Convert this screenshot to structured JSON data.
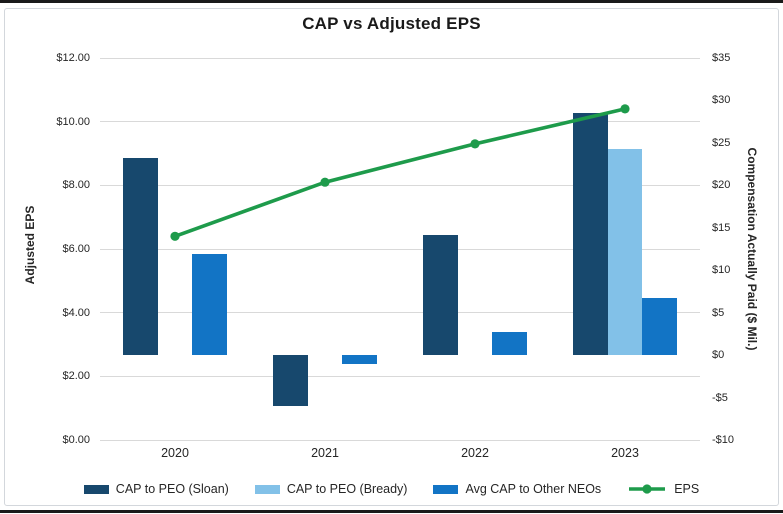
{
  "figure": {
    "title": "CAP vs Adjusted EPS"
  },
  "chart_data": {
    "type": "combo-bar-line",
    "title": "CAP vs Adjusted EPS",
    "categories": [
      "2020",
      "2021",
      "2022",
      "2023"
    ],
    "bar_series": [
      {
        "name": "CAP to PEO (Sloan)",
        "color": "#17486d",
        "axis": "right",
        "values": [
          23.2,
          -6.0,
          14.1,
          28.5
        ]
      },
      {
        "name": "CAP to PEO (Bready)",
        "color": "#82c1e8",
        "axis": "right",
        "values": [
          null,
          null,
          null,
          24.3
        ]
      },
      {
        "name": "Avg CAP to Other NEOs",
        "color": "#1274c5",
        "axis": "right",
        "values": [
          11.9,
          -1.1,
          2.7,
          6.7
        ]
      }
    ],
    "line_series": [
      {
        "name": "EPS",
        "color": "#1e9b4b",
        "axis": "left",
        "values": [
          6.4,
          8.1,
          9.3,
          10.4
        ]
      }
    ],
    "left_axis": {
      "label": "Adjusted EPS",
      "min": 0,
      "max": 12,
      "tick_step": 2,
      "ticks": [
        "$0.00",
        "$2.00",
        "$4.00",
        "$6.00",
        "$8.00",
        "$10.00",
        "$12.00"
      ]
    },
    "right_axis": {
      "label": "Compensation Actually Paid ($ Mil.)",
      "min": -10,
      "max": 35,
      "tick_step": 5,
      "ticks": [
        "-$10",
        "-$5",
        "$0",
        "$5",
        "$10",
        "$15",
        "$20",
        "$25",
        "$30",
        "$35"
      ]
    },
    "grid": true,
    "legend_position": "bottom",
    "colors": {
      "gridline": "#d9d9d9",
      "text": "#262626",
      "title": "#1a1a1a",
      "frame_border": "#d3d7dc",
      "top_bottom_rule": "#1a1a1a"
    }
  }
}
